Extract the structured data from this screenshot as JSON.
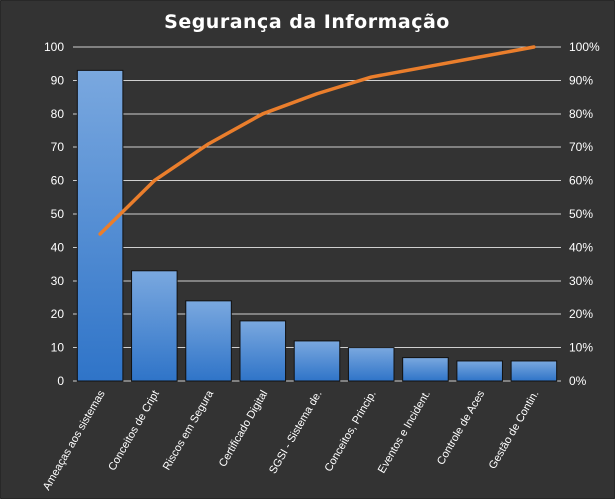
{
  "chart_data": {
    "type": "bar",
    "title": "Segurança  da Informação",
    "categories": [
      "Ameaças aos sistemas",
      "Conceitos de Cript",
      "Riscos em Segura",
      "Certificado Digital",
      "SGSI - Sistema de.",
      "Conceitos, Princip.",
      "Eventos e Incident.",
      "Controle de Aces",
      "Gestão de Contin."
    ],
    "series": [
      {
        "type": "bar",
        "values": [
          93,
          33,
          24,
          18,
          12,
          10,
          7,
          6,
          6
        ]
      },
      {
        "type": "line",
        "axis": "right",
        "values": [
          44,
          60,
          71,
          80,
          86,
          91,
          94,
          97,
          100
        ]
      }
    ],
    "ylim": [
      0,
      100
    ],
    "y_ticks": [
      "0",
      "10",
      "20",
      "30",
      "40",
      "50",
      "60",
      "70",
      "80",
      "90",
      "100"
    ],
    "y2lim": [
      0,
      100
    ],
    "y2_ticks": [
      "0%",
      "10%",
      "20%",
      "30%",
      "40%",
      "50%",
      "60%",
      "70%",
      "80%",
      "90%",
      "100%"
    ],
    "xlabel": "",
    "ylabel": "",
    "grid": true,
    "legend": "none",
    "colors": {
      "background": "#333333",
      "border": "#1c1c1c",
      "grid": "#cfcfcf",
      "bar_top": "#7aa8df",
      "bar_bottom": "#2f74c8",
      "bar_stroke": "#111111",
      "line": "#ea7e2c",
      "text": "#ffffff"
    }
  }
}
